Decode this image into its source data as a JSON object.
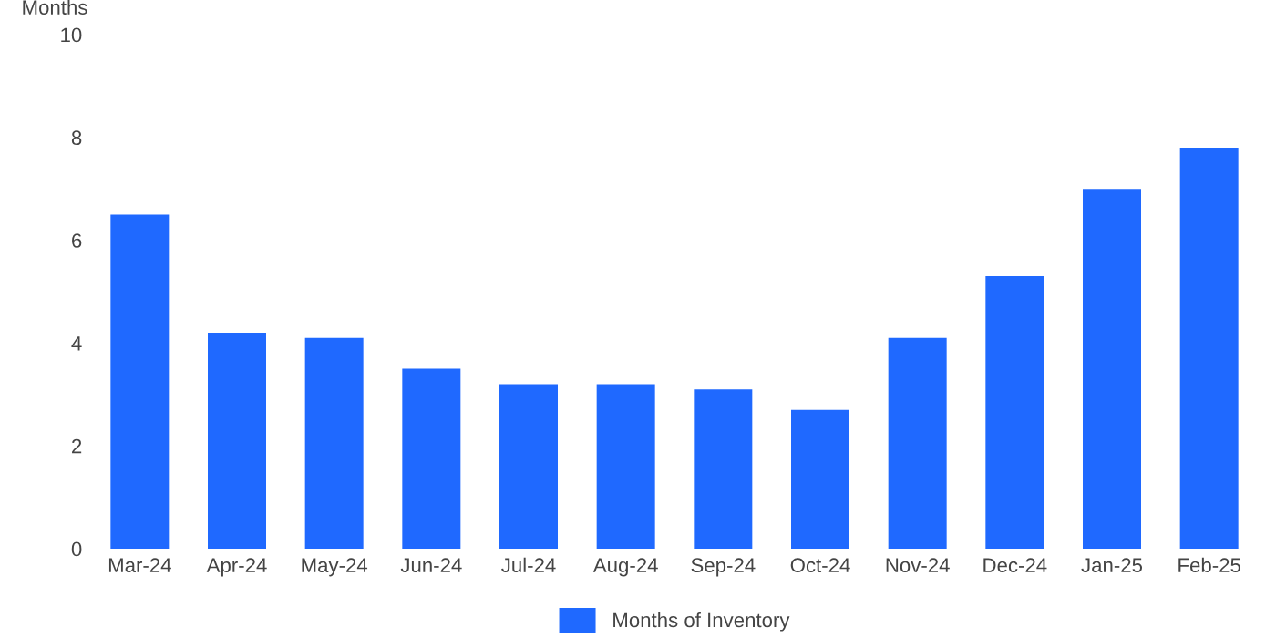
{
  "chart_data": {
    "type": "bar",
    "ylabel": "Months",
    "categories": [
      "Mar-24",
      "Apr-24",
      "May-24",
      "Jun-24",
      "Jul-24",
      "Aug-24",
      "Sep-24",
      "Oct-24",
      "Nov-24",
      "Dec-24",
      "Jan-25",
      "Feb-25"
    ],
    "series": [
      {
        "name": "Months of Inventory",
        "color": "#1f69ff",
        "values": [
          6.5,
          4.2,
          4.1,
          3.5,
          3.2,
          3.2,
          3.1,
          2.7,
          4.1,
          5.3,
          7.0,
          7.8
        ]
      }
    ],
    "ylim": [
      0,
      10
    ],
    "yticks": [
      0,
      2,
      4,
      6,
      8,
      10
    ],
    "grid": false,
    "legend": "bottom"
  }
}
